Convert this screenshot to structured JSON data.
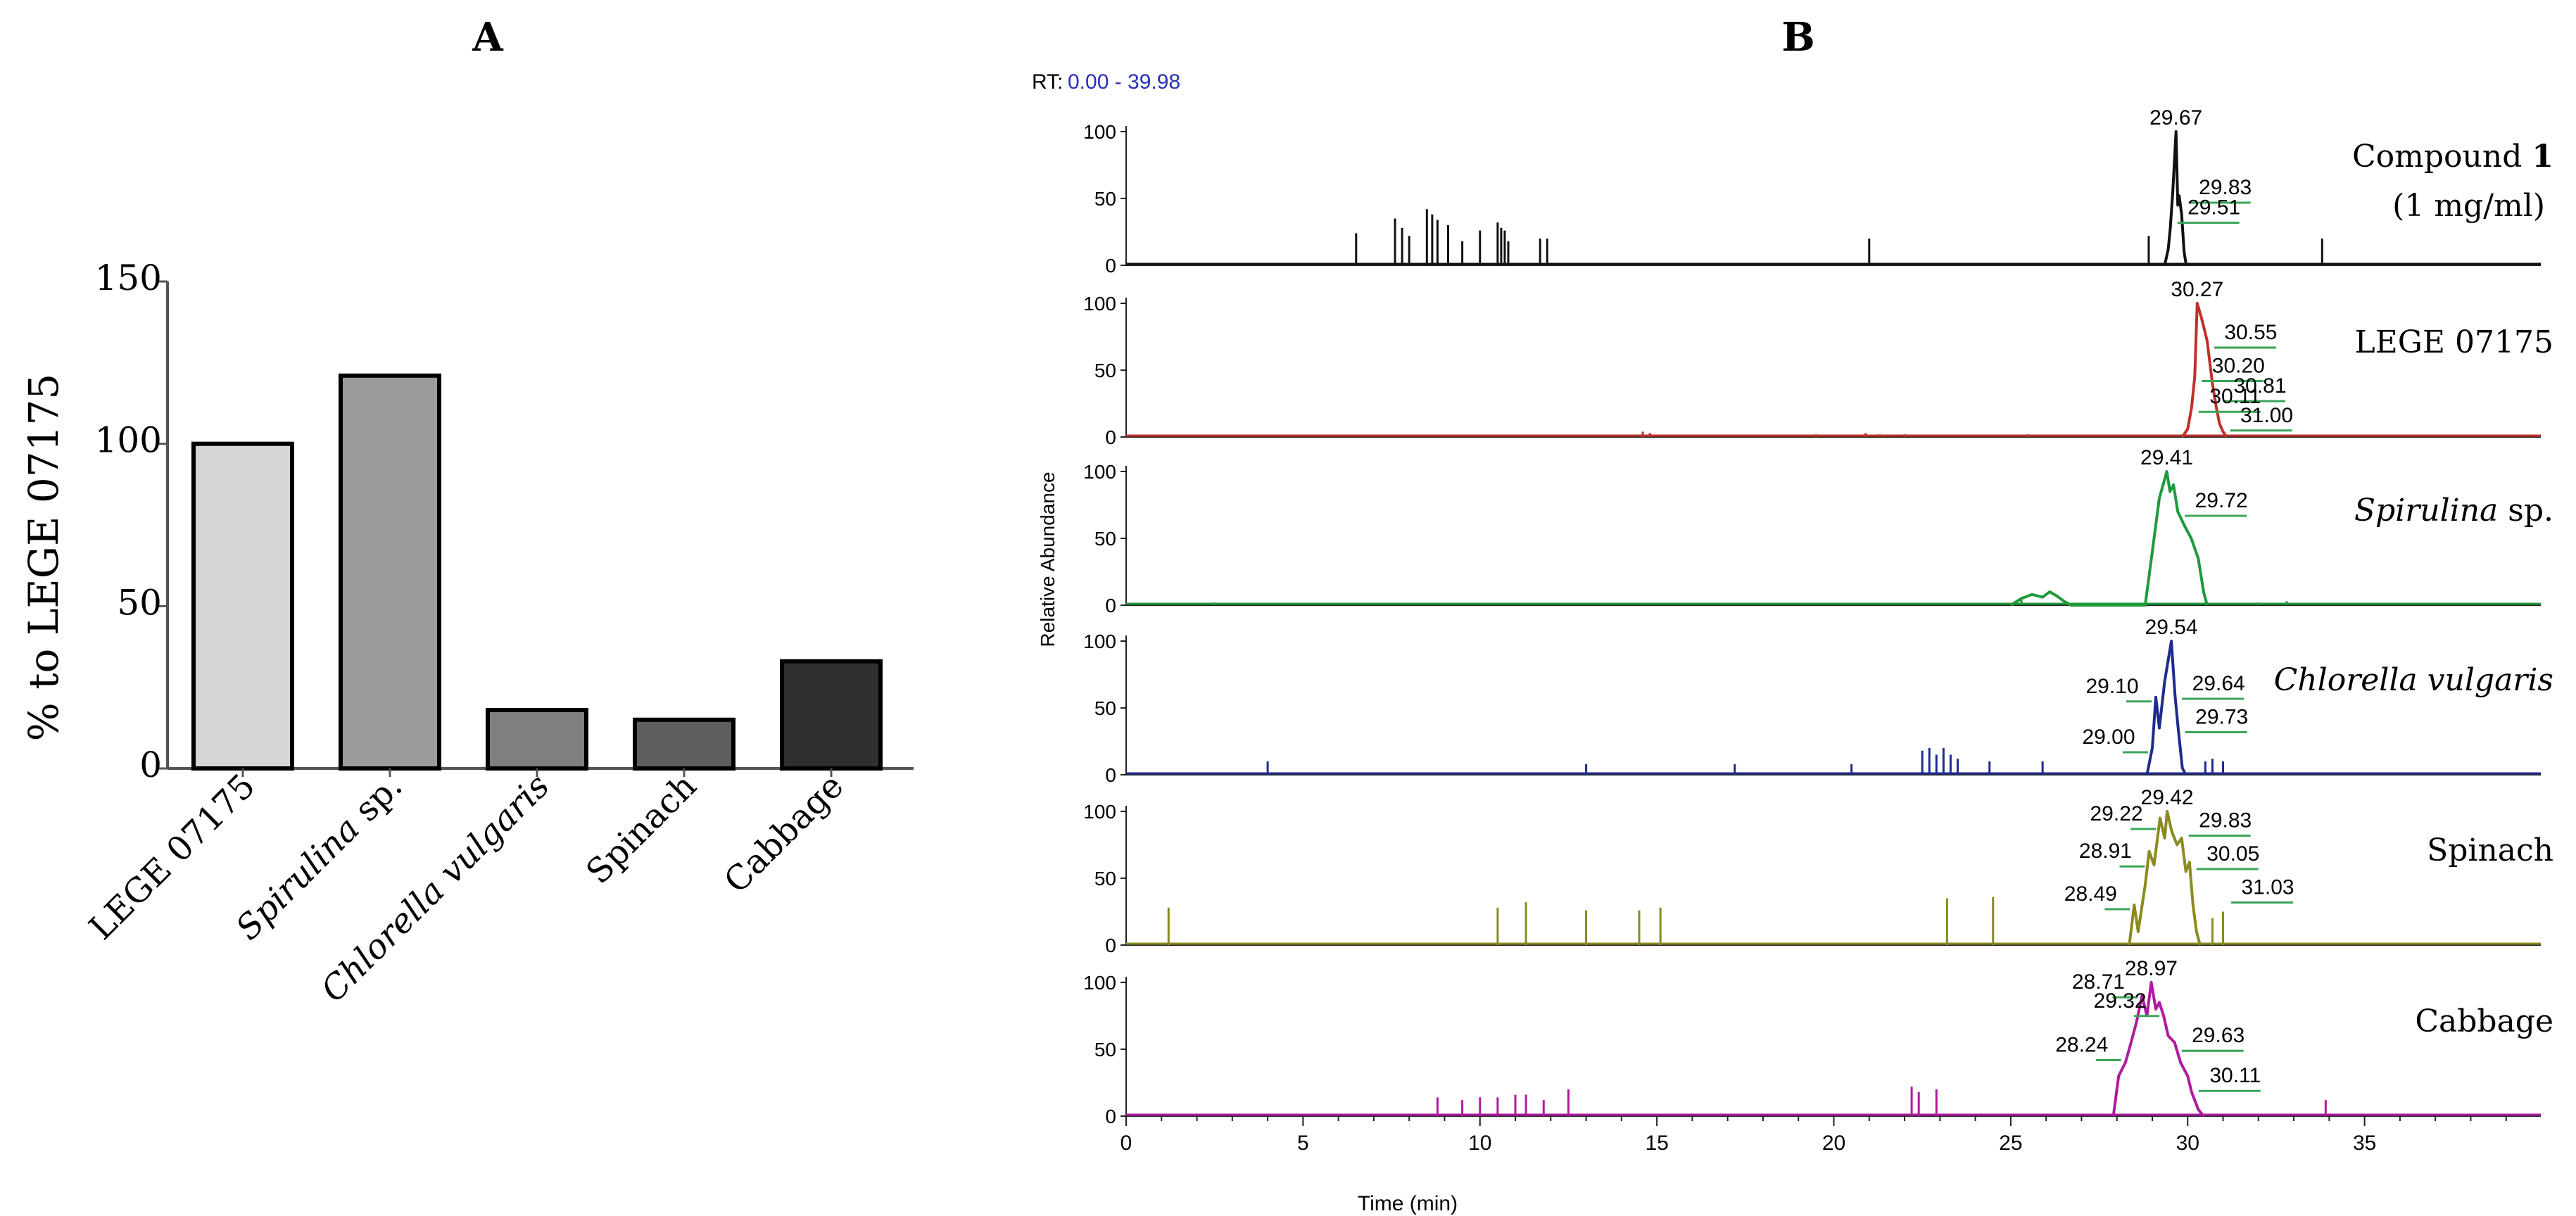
{
  "panel_labels": {
    "a": "A",
    "b": "B"
  },
  "chart_data": [
    {
      "type": "bar",
      "panel": "A",
      "title": "",
      "ylabel": "% to LEGE 07175",
      "xlabel": "",
      "ylim": [
        0,
        150
      ],
      "yticks": [
        "0",
        "50",
        "100",
        "150"
      ],
      "categories": [
        {
          "prefix": "LEGE 07175",
          "italic": "",
          "suffix": ""
        },
        {
          "prefix": "",
          "italic": "Spirulina",
          "suffix": " sp."
        },
        {
          "prefix": "",
          "italic": "Chlorella vulgaris",
          "suffix": ""
        },
        {
          "prefix": "Spinach",
          "italic": "",
          "suffix": ""
        },
        {
          "prefix": "Cabbage",
          "italic": "",
          "suffix": ""
        }
      ],
      "values": [
        100,
        121,
        18,
        15,
        33
      ],
      "colors": [
        "#d6d6d6",
        "#9b9b9b",
        "#7f7f7f",
        "#5e5e5e",
        "#303030"
      ]
    },
    {
      "type": "line",
      "panel": "B",
      "rt_label": "RT:",
      "rt_range": "0.00 - 39.98",
      "xlabel": "Time (min)",
      "ylabel": "Relative Abundance",
      "xlim": [
        0,
        39.98
      ],
      "xticks": [
        "0",
        "5",
        "10",
        "15",
        "20",
        "25",
        "30",
        "35"
      ],
      "yticks": [
        "0",
        "50",
        "100"
      ],
      "series": [
        {
          "name_prefix": "Compound ",
          "name_italic": "",
          "name_bold": "1",
          "name_suffix": "",
          "name_line2": "(1 mg/ml)",
          "color": "#111111",
          "spikes": [
            [
              6.5,
              24
            ],
            [
              7.6,
              35
            ],
            [
              7.8,
              28
            ],
            [
              8.0,
              22
            ],
            [
              8.5,
              42
            ],
            [
              8.65,
              38
            ],
            [
              8.8,
              34
            ],
            [
              9.1,
              30
            ],
            [
              9.5,
              18
            ],
            [
              10.0,
              26
            ],
            [
              10.5,
              32
            ],
            [
              10.6,
              28
            ],
            [
              10.7,
              26
            ],
            [
              10.8,
              18
            ],
            [
              11.7,
              20
            ],
            [
              11.9,
              20
            ],
            [
              21.0,
              20
            ],
            [
              28.9,
              22
            ],
            [
              33.8,
              20
            ]
          ],
          "peak": [
            [
              29.35,
              0
            ],
            [
              29.45,
              12
            ],
            [
              29.51,
              28
            ],
            [
              29.58,
              55
            ],
            [
              29.67,
              100
            ],
            [
              29.72,
              45
            ],
            [
              29.76,
              52
            ],
            [
              29.83,
              38
            ],
            [
              29.9,
              10
            ],
            [
              29.96,
              0
            ]
          ],
          "labels": [
            {
              "text": "29.67",
              "x": 29.67,
              "y": 100
            },
            {
              "text": "29.83",
              "x": 29.83,
              "y": 50
            },
            {
              "text": "29.51",
              "x": 29.51,
              "y": 35
            }
          ]
        },
        {
          "name_prefix": "LEGE 07175",
          "name_italic": "",
          "name_bold": "",
          "name_suffix": "",
          "name_line2": "",
          "color": "#c0302a",
          "spikes": [
            [
              14.6,
              4
            ],
            [
              14.8,
              3
            ],
            [
              19.5,
              2
            ],
            [
              20.9,
              3
            ],
            [
              21.3,
              2
            ],
            [
              22.0,
              2
            ],
            [
              25.5,
              2
            ]
          ],
          "peak": [
            [
              29.85,
              0
            ],
            [
              30.0,
              6
            ],
            [
              30.11,
              22
            ],
            [
              30.2,
              45
            ],
            [
              30.27,
              100
            ],
            [
              30.4,
              88
            ],
            [
              30.55,
              72
            ],
            [
              30.7,
              40
            ],
            [
              30.81,
              22
            ],
            [
              30.9,
              10
            ],
            [
              31.0,
              4
            ],
            [
              31.1,
              0
            ]
          ],
          "labels": [
            {
              "text": "30.27",
              "x": 30.27,
              "y": 100
            },
            {
              "text": "30.55",
              "x": 30.55,
              "y": 70
            },
            {
              "text": "30.20",
              "x": 30.2,
              "y": 45
            },
            {
              "text": "30.81",
              "x": 30.81,
              "y": 30
            },
            {
              "text": "30.11",
              "x": 30.11,
              "y": 22
            },
            {
              "text": "31.00",
              "x": 31.0,
              "y": 8
            }
          ]
        },
        {
          "name_prefix": "",
          "name_italic": "Spirulina",
          "name_bold": "",
          "name_suffix": " sp.",
          "name_line2": "",
          "color": "#1e9a3c",
          "spikes": [
            [
              2.5,
              2
            ],
            [
              25.3,
              4
            ],
            [
              32.0,
              2
            ],
            [
              32.8,
              3
            ]
          ],
          "peak": [
            [
              25.0,
              0
            ],
            [
              25.3,
              5
            ],
            [
              25.6,
              8
            ],
            [
              25.9,
              6
            ],
            [
              26.1,
              10
            ],
            [
              26.3,
              7
            ],
            [
              26.5,
              3
            ],
            [
              26.7,
              0
            ],
            [
              28.8,
              0
            ],
            [
              29.0,
              40
            ],
            [
              29.2,
              80
            ],
            [
              29.41,
              100
            ],
            [
              29.5,
              85
            ],
            [
              29.6,
              90
            ],
            [
              29.72,
              70
            ],
            [
              29.9,
              60
            ],
            [
              30.1,
              50
            ],
            [
              30.3,
              35
            ],
            [
              30.45,
              10
            ],
            [
              30.55,
              0
            ]
          ],
          "labels": [
            {
              "text": "29.41",
              "x": 29.41,
              "y": 100
            },
            {
              "text": "29.72",
              "x": 29.72,
              "y": 70
            }
          ]
        },
        {
          "name_prefix": "",
          "name_italic": "Chlorella vulgaris",
          "name_bold": "",
          "name_suffix": "",
          "name_line2": "",
          "color": "#1f2b8f",
          "spikes": [
            [
              4.0,
              10
            ],
            [
              13.0,
              8
            ],
            [
              17.2,
              8
            ],
            [
              20.5,
              8
            ],
            [
              22.5,
              18
            ],
            [
              22.7,
              20
            ],
            [
              22.9,
              15
            ],
            [
              23.1,
              20
            ],
            [
              23.3,
              15
            ],
            [
              23.5,
              12
            ],
            [
              24.4,
              10
            ],
            [
              25.9,
              10
            ],
            [
              30.5,
              10
            ],
            [
              30.7,
              12
            ],
            [
              31.0,
              10
            ]
          ],
          "peak": [
            [
              28.85,
              0
            ],
            [
              29.0,
              20
            ],
            [
              29.1,
              58
            ],
            [
              29.2,
              35
            ],
            [
              29.35,
              70
            ],
            [
              29.54,
              100
            ],
            [
              29.64,
              60
            ],
            [
              29.73,
              35
            ],
            [
              29.85,
              5
            ],
            [
              29.95,
              0
            ]
          ],
          "labels": [
            {
              "text": "29.54",
              "x": 29.54,
              "y": 100
            },
            {
              "text": "29.10",
              "x": 29.1,
              "y": 58
            },
            {
              "text": "29.64",
              "x": 29.64,
              "y": 60
            },
            {
              "text": "29.00",
              "x": 29.0,
              "y": 20
            },
            {
              "text": "29.73",
              "x": 29.73,
              "y": 35
            }
          ]
        },
        {
          "name_prefix": "Spinach",
          "name_italic": "",
          "name_bold": "",
          "name_suffix": "",
          "name_line2": "",
          "color": "#8a8a20",
          "spikes": [
            [
              1.2,
              28
            ],
            [
              10.5,
              28
            ],
            [
              11.3,
              32
            ],
            [
              13.0,
              26
            ],
            [
              14.5,
              26
            ],
            [
              15.1,
              28
            ],
            [
              23.2,
              35
            ],
            [
              24.5,
              36
            ],
            [
              30.7,
              20
            ],
            [
              31.0,
              25
            ]
          ],
          "peak": [
            [
              28.35,
              0
            ],
            [
              28.49,
              30
            ],
            [
              28.6,
              10
            ],
            [
              28.8,
              45
            ],
            [
              28.91,
              70
            ],
            [
              29.05,
              60
            ],
            [
              29.22,
              95
            ],
            [
              29.35,
              80
            ],
            [
              29.42,
              100
            ],
            [
              29.55,
              85
            ],
            [
              29.7,
              75
            ],
            [
              29.83,
              80
            ],
            [
              29.95,
              55
            ],
            [
              30.05,
              62
            ],
            [
              30.15,
              30
            ],
            [
              30.25,
              10
            ],
            [
              30.35,
              0
            ]
          ],
          "labels": [
            {
              "text": "29.42",
              "x": 29.42,
              "y": 100
            },
            {
              "text": "29.22",
              "x": 29.22,
              "y": 90
            },
            {
              "text": "29.83",
              "x": 29.83,
              "y": 85
            },
            {
              "text": "28.91",
              "x": 28.91,
              "y": 62
            },
            {
              "text": "30.05",
              "x": 30.05,
              "y": 60
            },
            {
              "text": "28.49",
              "x": 28.49,
              "y": 30
            },
            {
              "text": "31.03",
              "x": 31.03,
              "y": 35
            }
          ]
        },
        {
          "name_prefix": "Cabbage",
          "name_italic": "",
          "name_bold": "",
          "name_suffix": "",
          "name_line2": "",
          "color": "#b01aa0",
          "spikes": [
            [
              8.8,
              14
            ],
            [
              9.5,
              12
            ],
            [
              10.0,
              14
            ],
            [
              10.5,
              14
            ],
            [
              11.0,
              16
            ],
            [
              11.3,
              16
            ],
            [
              11.8,
              12
            ],
            [
              12.5,
              20
            ],
            [
              22.2,
              22
            ],
            [
              22.4,
              18
            ],
            [
              22.9,
              20
            ],
            [
              33.9,
              12
            ]
          ],
          "peak": [
            [
              27.9,
              0
            ],
            [
              28.05,
              30
            ],
            [
              28.24,
              40
            ],
            [
              28.4,
              55
            ],
            [
              28.55,
              70
            ],
            [
              28.71,
              90
            ],
            [
              28.85,
              75
            ],
            [
              28.97,
              100
            ],
            [
              29.1,
              80
            ],
            [
              29.2,
              85
            ],
            [
              29.32,
              75
            ],
            [
              29.45,
              60
            ],
            [
              29.63,
              55
            ],
            [
              29.8,
              40
            ],
            [
              30.0,
              30
            ],
            [
              30.11,
              18
            ],
            [
              30.3,
              5
            ],
            [
              30.45,
              0
            ]
          ],
          "labels": [
            {
              "text": "28.97",
              "x": 28.97,
              "y": 100
            },
            {
              "text": "28.71",
              "x": 28.71,
              "y": 92
            },
            {
              "text": "29.32",
              "x": 29.32,
              "y": 78
            },
            {
              "text": "28.24",
              "x": 28.24,
              "y": 45
            },
            {
              "text": "29.63",
              "x": 29.63,
              "y": 52
            },
            {
              "text": "30.11",
              "x": 30.11,
              "y": 22
            }
          ]
        }
      ]
    }
  ]
}
